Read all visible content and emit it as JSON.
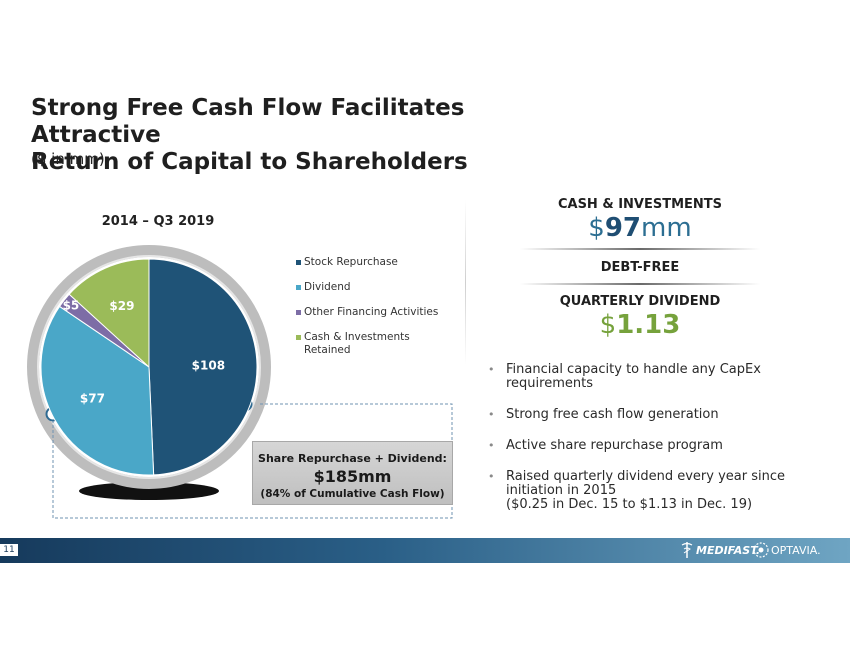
{
  "slide": {
    "title_line1": "Strong Free Cash Flow Facilitates Attractive",
    "title_line2": "Return of Capital to Shareholders",
    "subtitle": "($ in mm)",
    "page_number": "11"
  },
  "chart_data": {
    "type": "pie",
    "title": "2014 – Q3 2019",
    "categories": [
      "Stock Repurchase",
      "Dividend",
      "Other Financing Activities",
      "Cash & Investments Retained"
    ],
    "values": [
      108,
      77,
      5,
      29
    ],
    "data_labels": [
      "$108",
      "$77",
      "$5",
      "$29"
    ],
    "colors": [
      "#1f5377",
      "#4aa7c8",
      "#7d6da6",
      "#9bbb59"
    ],
    "legend_position": "right"
  },
  "legend": {
    "items": [
      {
        "label": "Stock Repurchase",
        "color": "#1f5377"
      },
      {
        "label": "Dividend",
        "color": "#4aa7c8"
      },
      {
        "label": "Other Financing Activities",
        "color": "#7d6da6"
      },
      {
        "label": "Cash & Investments Retained",
        "color": "#9bbb59"
      }
    ]
  },
  "callout": {
    "line1": "Share Repurchase + Dividend:",
    "line2": "$185mm",
    "line3": "(84% of Cumulative Cash Flow)"
  },
  "kpis": {
    "cash_label": "CASH & INVESTMENTS",
    "cash_prefix": "$",
    "cash_number": "97",
    "cash_suffix": "mm",
    "debt_label": "DEBT-FREE",
    "dividend_label": "QUARTERLY DIVIDEND",
    "dividend_prefix": "$",
    "dividend_number": "1.13"
  },
  "bullets": [
    {
      "text": "Financial capacity to handle any CapEx requirements",
      "sub": ""
    },
    {
      "text": "Strong free cash flow generation",
      "sub": ""
    },
    {
      "text": "Active share repurchase program",
      "sub": ""
    },
    {
      "text": "Raised quarterly dividend every year since initiation in 2015",
      "sub": "($0.25 in Dec. 15 to $1.13 in Dec. 19)"
    }
  ],
  "footer": {
    "brand1": "MEDIFAST.",
    "brand2": "OPTAVIA."
  },
  "colors": {
    "accent_blue": "#2c6e92",
    "accent_green": "#76a23c",
    "footer_dark": "#163a5c"
  }
}
